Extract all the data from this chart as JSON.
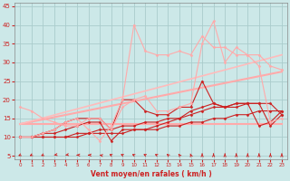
{
  "background_color": "#cce8e8",
  "grid_color": "#aacccc",
  "xlabel": "Vent moyen/en rafales ( km/h )",
  "xlim": [
    -0.5,
    23.5
  ],
  "ylim": [
    4,
    46
  ],
  "yticks": [
    5,
    10,
    15,
    20,
    25,
    30,
    35,
    40,
    45
  ],
  "xticks": [
    0,
    1,
    2,
    3,
    4,
    5,
    6,
    7,
    8,
    9,
    10,
    11,
    12,
    13,
    14,
    15,
    16,
    17,
    18,
    19,
    20,
    21,
    22,
    23
  ],
  "lines": [
    {
      "x": [
        0,
        23
      ],
      "y": [
        13.5,
        27.5
      ],
      "color": "#ffaaaa",
      "lw": 1.5,
      "marker": null
    },
    {
      "x": [
        0,
        23
      ],
      "y": [
        13.5,
        13.5
      ],
      "color": "#ffaaaa",
      "lw": 1.5,
      "marker": null
    },
    {
      "x": [
        0,
        23
      ],
      "y": [
        13.5,
        32.0
      ],
      "color": "#ffbbbb",
      "lw": 1.2,
      "marker": null
    },
    {
      "x": [
        0,
        1,
        2,
        3,
        4,
        5,
        6,
        7,
        8,
        9,
        10,
        11,
        12,
        13,
        14,
        15,
        16,
        17,
        18,
        19,
        20,
        21,
        22,
        23
      ],
      "y": [
        10,
        10,
        11,
        12,
        14,
        15,
        15,
        15,
        12,
        20,
        20,
        17,
        16,
        16,
        18,
        18,
        25,
        19,
        18,
        18,
        19,
        13,
        14,
        17
      ],
      "color": "#cc2222",
      "lw": 0.8,
      "marker": "D",
      "ms": 1.5
    },
    {
      "x": [
        0,
        1,
        2,
        3,
        4,
        5,
        6,
        7,
        8,
        9,
        10,
        11,
        12,
        13,
        14,
        15,
        16,
        17,
        18,
        19,
        20,
        21,
        22,
        23
      ],
      "y": [
        10,
        10,
        11,
        11,
        12,
        13,
        14,
        14,
        9,
        12,
        12,
        12,
        13,
        14,
        15,
        17,
        18,
        19,
        18,
        19,
        19,
        19,
        13,
        16
      ],
      "color": "#cc2222",
      "lw": 0.8,
      "marker": "D",
      "ms": 1.5
    },
    {
      "x": [
        0,
        1,
        2,
        3,
        4,
        5,
        6,
        7,
        8,
        9,
        10,
        11,
        12,
        13,
        14,
        15,
        16,
        17,
        18,
        19,
        20,
        21,
        22,
        23
      ],
      "y": [
        10,
        10,
        10,
        10,
        10,
        11,
        11,
        12,
        12,
        13,
        13,
        14,
        14,
        15,
        15,
        16,
        17,
        18,
        18,
        19,
        19,
        19,
        19,
        16
      ],
      "color": "#cc2222",
      "lw": 0.8,
      "marker": "D",
      "ms": 1.5
    },
    {
      "x": [
        0,
        1,
        2,
        3,
        4,
        5,
        6,
        7,
        8,
        9,
        10,
        11,
        12,
        13,
        14,
        15,
        16,
        17,
        18,
        19,
        20,
        21,
        22,
        23
      ],
      "y": [
        10,
        10,
        10,
        10,
        10,
        10,
        11,
        11,
        11,
        11,
        12,
        12,
        12,
        13,
        13,
        14,
        14,
        15,
        15,
        16,
        16,
        17,
        17,
        17
      ],
      "color": "#cc2222",
      "lw": 0.8,
      "marker": "D",
      "ms": 1.5
    },
    {
      "x": [
        0,
        1,
        2,
        3,
        4,
        5,
        6,
        7,
        8,
        9,
        10,
        11,
        12,
        13,
        14,
        15,
        16,
        17,
        18,
        19,
        20,
        21,
        22,
        23
      ],
      "y": [
        18,
        17,
        15,
        14,
        13,
        13,
        15,
        15,
        12,
        18,
        20,
        21,
        17,
        17,
        18,
        19,
        35,
        41,
        30,
        34,
        32,
        29,
        14,
        15
      ],
      "color": "#ffaaaa",
      "lw": 0.8,
      "marker": "D",
      "ms": 1.5
    },
    {
      "x": [
        0,
        1,
        2,
        3,
        4,
        5,
        6,
        7,
        8,
        9,
        10,
        11,
        12,
        13,
        14,
        15,
        16,
        17,
        18,
        19,
        20,
        21,
        22,
        23
      ],
      "y": [
        10,
        10,
        11,
        12,
        14,
        15,
        12,
        9,
        13,
        20,
        40,
        33,
        32,
        32,
        33,
        32,
        37,
        34,
        34,
        32,
        32,
        32,
        29,
        28
      ],
      "color": "#ffaaaa",
      "lw": 0.8,
      "marker": "D",
      "ms": 1.5
    }
  ],
  "tick_label_color": "#cc2222",
  "axis_label_color": "#cc2222",
  "axis_color": "#888888",
  "arrow_angles": [
    225,
    225,
    225,
    200,
    200,
    180,
    180,
    160,
    135,
    135,
    135,
    135,
    135,
    120,
    110,
    100,
    90,
    90,
    90,
    90,
    90,
    90,
    90,
    90
  ]
}
